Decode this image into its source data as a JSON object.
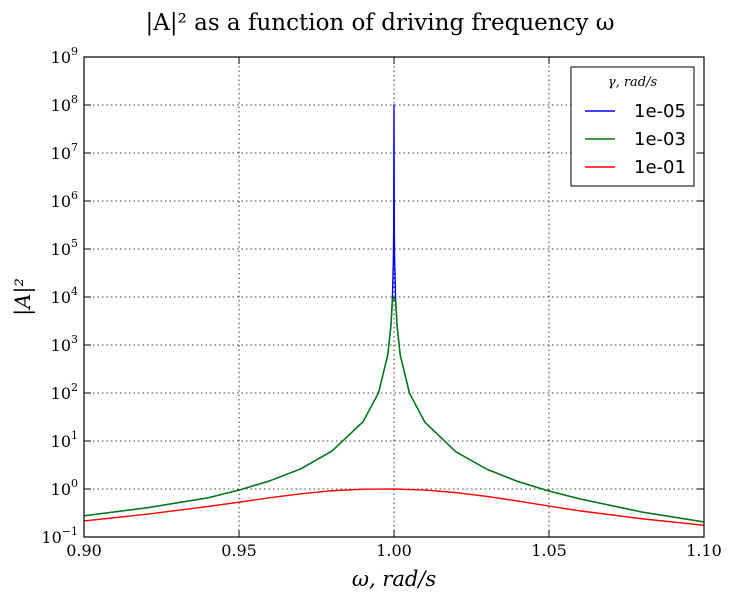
{
  "chart_data": {
    "type": "line",
    "title": "|A|² as a function of driving frequency ω",
    "xlabel": "ω, rad/s",
    "ylabel": "|A|²",
    "xlim": [
      0.9,
      1.1
    ],
    "ylim": [
      0.1,
      1000000000
    ],
    "yscale": "log",
    "grid": true,
    "legend_placement": "top-right",
    "legend_title": "γ, rad/s",
    "x_ticks": [
      {
        "value": 0.9,
        "label": "0.90"
      },
      {
        "value": 0.95,
        "label": "0.95"
      },
      {
        "value": 1.0,
        "label": "1.00"
      },
      {
        "value": 1.05,
        "label": "1.05"
      },
      {
        "value": 1.1,
        "label": "1.10"
      }
    ],
    "y_ticks": [
      {
        "value": 0.1,
        "base": "10",
        "exp": "−1"
      },
      {
        "value": 1,
        "base": "10",
        "exp": "0"
      },
      {
        "value": 10,
        "base": "10",
        "exp": "1"
      },
      {
        "value": 100,
        "base": "10",
        "exp": "2"
      },
      {
        "value": 1000,
        "base": "10",
        "exp": "3"
      },
      {
        "value": 10000,
        "base": "10",
        "exp": "4"
      },
      {
        "value": 100000,
        "base": "10",
        "exp": "5"
      },
      {
        "value": 1000000,
        "base": "10",
        "exp": "6"
      },
      {
        "value": 10000000,
        "base": "10",
        "exp": "7"
      },
      {
        "value": 100000000,
        "base": "10",
        "exp": "8"
      },
      {
        "value": 1000000000,
        "base": "10",
        "exp": "9"
      }
    ],
    "series": [
      {
        "name": "1e-05",
        "color": "#0000ff",
        "x": [
          0.9,
          0.92,
          0.94,
          0.95,
          0.96,
          0.97,
          0.98,
          0.99,
          0.995,
          0.998,
          0.999,
          0.9995,
          0.9998,
          0.9999,
          1.0,
          1.0001,
          1.0002,
          1.0005,
          1.001,
          1.002,
          1.005,
          1.01,
          1.02,
          1.03,
          1.04,
          1.05,
          1.06,
          1.08,
          1.1
        ],
        "y": [
          0.277,
          0.403,
          0.657,
          0.948,
          1.484,
          2.64,
          6.18,
          25.1,
          100.5,
          627,
          2505,
          10000,
          62500,
          250000,
          100000000,
          250000,
          62500,
          10000,
          2495,
          622,
          98.5,
          24.4,
          5.94,
          2.57,
          1.43,
          0.907,
          0.621,
          0.331,
          0.206
        ]
      },
      {
        "name": "1e-03",
        "color": "#008000",
        "x": [
          0.9,
          0.92,
          0.94,
          0.95,
          0.96,
          0.97,
          0.98,
          0.99,
          0.995,
          0.998,
          0.999,
          0.9995,
          0.9998,
          0.9999,
          1.0,
          1.0001,
          1.0002,
          1.0005,
          1.001,
          1.002,
          1.005,
          1.01,
          1.02,
          1.03,
          1.04,
          1.05,
          1.06,
          1.08,
          1.1
        ],
        "y": [
          0.277,
          0.403,
          0.657,
          0.948,
          1.484,
          2.64,
          6.18,
          25.1,
          100.5,
          625,
          2490,
          8000,
          9600,
          9900,
          10000,
          9900,
          9600,
          8000,
          2480,
          620,
          98.5,
          24.4,
          5.94,
          2.57,
          1.43,
          0.907,
          0.621,
          0.331,
          0.206
        ]
      },
      {
        "name": "1e-01",
        "color": "#ff0000",
        "x": [
          0.9,
          0.92,
          0.94,
          0.95,
          0.96,
          0.97,
          0.98,
          0.99,
          1.0,
          1.01,
          1.02,
          1.03,
          1.04,
          1.05,
          1.06,
          1.08,
          1.1
        ],
        "y": [
          0.216,
          0.297,
          0.432,
          0.531,
          0.658,
          0.795,
          0.92,
          0.99,
          1.0,
          0.95,
          0.84,
          0.7,
          0.56,
          0.44,
          0.35,
          0.24,
          0.175
        ]
      }
    ]
  }
}
